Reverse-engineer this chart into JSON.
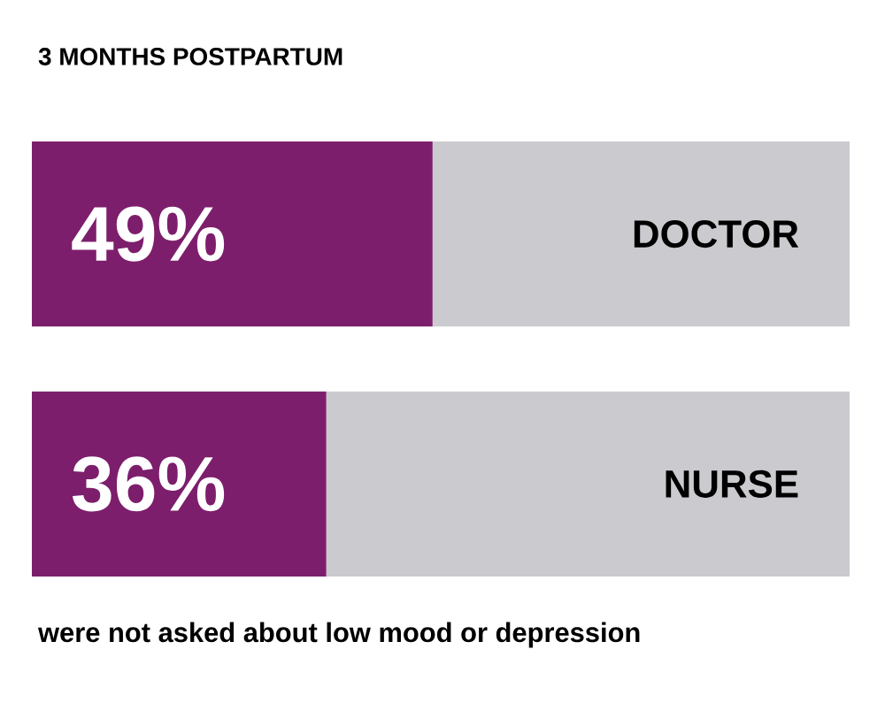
{
  "chart_data": {
    "type": "bar",
    "orientation": "horizontal",
    "stacked": true,
    "title": "3 MONTHS POSTPARTUM",
    "categories": [
      "DOCTOR",
      "NURSE"
    ],
    "series": [
      {
        "color": "#7d1e6c",
        "values": [
          49,
          36
        ],
        "value_labels": [
          "49%",
          "36%"
        ]
      },
      {
        "color": "#cbcacf",
        "values": [
          51,
          64
        ]
      }
    ],
    "annotations": [
      "were not asked about low mood or depression"
    ]
  }
}
